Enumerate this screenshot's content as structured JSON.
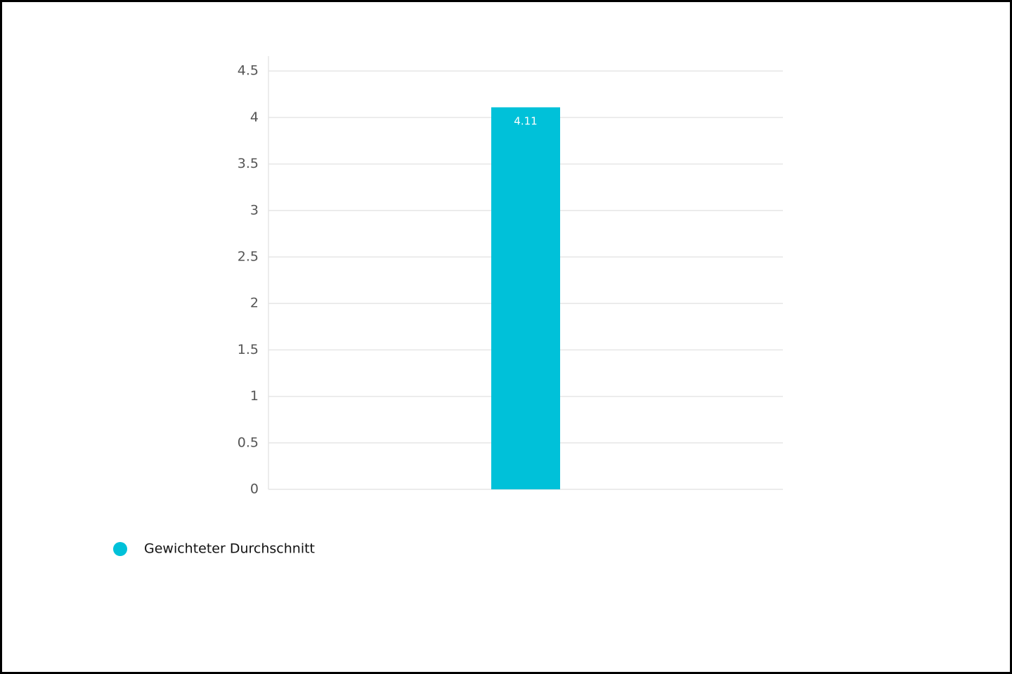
{
  "chart_data": {
    "type": "bar",
    "categories": [
      null
    ],
    "series": [
      {
        "name": "Gewichteter Durchschnitt",
        "color": "#00c1d9",
        "values": [
          4.11
        ]
      }
    ],
    "ylim": [
      0,
      4.66
    ],
    "yticks": [
      0,
      0.5,
      1,
      1.5,
      2,
      2.5,
      3,
      3.5,
      4,
      4.5
    ],
    "grid": true,
    "legend": "bottom-left"
  }
}
